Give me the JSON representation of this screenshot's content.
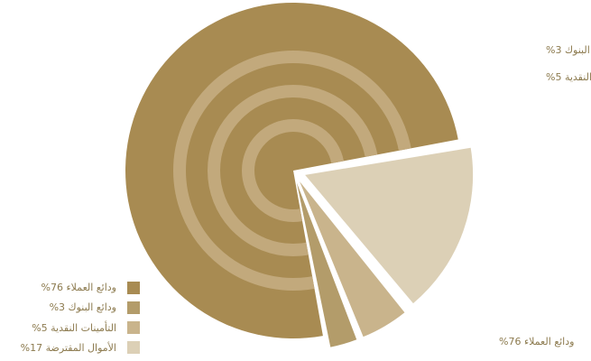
{
  "chart_data": {
    "type": "pie",
    "slices": [
      {
        "label": "ودائع العملاء",
        "value": 76,
        "value_text": "76%",
        "color": "#a88b52"
      },
      {
        "label": "ودائع البنوك",
        "value": 3,
        "value_text": "3%",
        "color": "#b39c6a"
      },
      {
        "label": "التأمينات النقدية",
        "value": 5,
        "value_text": "5%",
        "color": "#c9b48c"
      },
      {
        "label": "الأموال المقترضة",
        "value": 17,
        "value_text": "17%",
        "color": "#dcd0b6"
      }
    ],
    "ring_color": "#c2a97c",
    "legend_placement": "bottom-left"
  }
}
